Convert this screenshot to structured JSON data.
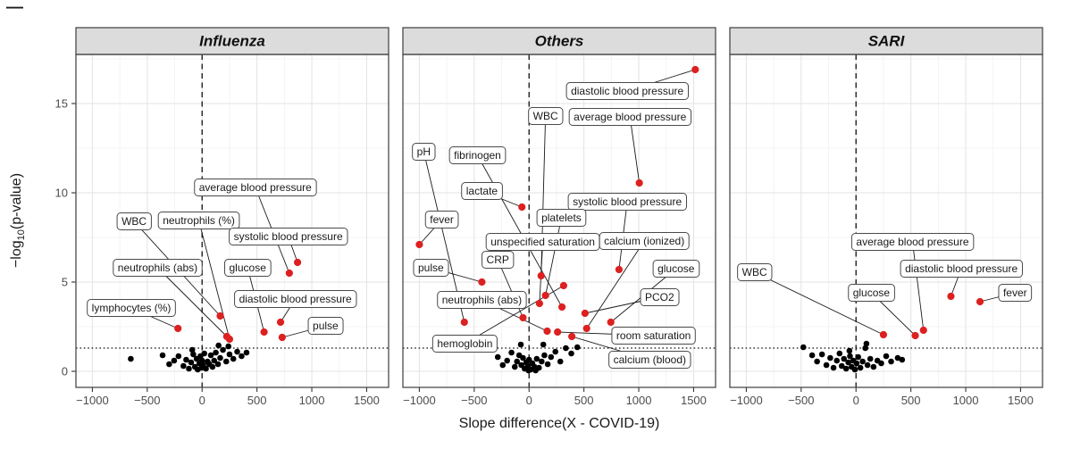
{
  "page": {
    "corner_mark": "—"
  },
  "chart_data": {
    "type": "scatter",
    "subtype": "faceted volcano plot",
    "title": "",
    "xlabel": "Slope difference(X - COVID-19)",
    "ylabel": "-log10(p-value)",
    "ylabel_parts": {
      "prefix": "−log",
      "sub": "10",
      "suffix": "(p-value)"
    },
    "xlim": [
      -1150,
      1700
    ],
    "ylim": [
      -0.9,
      17.75
    ],
    "x_ticks": [
      -1000,
      -500,
      0,
      500,
      1000,
      1500
    ],
    "y_ticks": [
      0,
      5,
      10,
      15
    ],
    "x_minor_ticks": [
      -750,
      -250,
      250,
      750,
      1250
    ],
    "y_minor_ticks": [
      2.5,
      7.5,
      12.5,
      17.5
    ],
    "grid": true,
    "legend_position": "none",
    "significance_threshold_y": 1.3,
    "reference_vline_x": 0,
    "colors": {
      "significant_point": "#dd2020",
      "background_point": "#000000",
      "strip_background": "#dcdcdc",
      "panel_border": "#4a4a4a",
      "grid_major": "#e3e3e3",
      "grid_minor": "#f1f1f1",
      "label_box_fill": "#ffffff",
      "label_box_border": "#4a4a4a",
      "leader_line": "#1a1a1a",
      "tick_text": "#4d4d4d"
    },
    "facets": [
      {
        "title": "Influenza",
        "significant_points": [
          {
            "label": "lymphocytes (%)",
            "x": -220,
            "y": 2.4,
            "label_x": -645,
            "label_y": 3.55
          },
          {
            "label": "WBC",
            "x": 165,
            "y": 3.1,
            "label_x": -620,
            "label_y": 8.4
          },
          {
            "label": "neutrophils (%)",
            "x": 250,
            "y": 1.8,
            "label_x": -30,
            "label_y": 8.45
          },
          {
            "label": "neutrophils (abs)",
            "x": 225,
            "y": 1.95,
            "label_x": -405,
            "label_y": 5.8
          },
          {
            "label": "glucose",
            "x": 565,
            "y": 2.2,
            "label_x": 415,
            "label_y": 5.8
          },
          {
            "label": "diastolic blood pressure",
            "x": 715,
            "y": 2.75,
            "label_x": 850,
            "label_y": 4.05
          },
          {
            "label": "pulse",
            "x": 730,
            "y": 1.9,
            "label_x": 1125,
            "label_y": 2.55
          },
          {
            "label": "average blood pressure",
            "x": 795,
            "y": 5.5,
            "label_x": 485,
            "label_y": 10.3
          },
          {
            "label": "systolic blood pressure",
            "x": 870,
            "y": 6.1,
            "label_x": 785,
            "label_y": 7.55
          }
        ],
        "background_points": [
          [
            -650,
            0.7
          ],
          [
            -360,
            0.9
          ],
          [
            -300,
            0.4
          ],
          [
            -255,
            0.6
          ],
          [
            -215,
            0.85
          ],
          [
            -170,
            0.3
          ],
          [
            -145,
            0.65
          ],
          [
            -120,
            0.15
          ],
          [
            -100,
            0.5
          ],
          [
            -80,
            0.95
          ],
          [
            -65,
            0.25
          ],
          [
            -50,
            0.7
          ],
          [
            -40,
            0.1
          ],
          [
            -25,
            0.45
          ],
          [
            -15,
            0.85
          ],
          [
            -5,
            0.2
          ],
          [
            0,
            0.6
          ],
          [
            10,
            0.35
          ],
          [
            20,
            1.0
          ],
          [
            35,
            0.15
          ],
          [
            50,
            0.55
          ],
          [
            65,
            0.4
          ],
          [
            80,
            0.9
          ],
          [
            95,
            0.25
          ],
          [
            110,
            0.6
          ],
          [
            125,
            1.05
          ],
          [
            145,
            0.4
          ],
          [
            165,
            0.75
          ],
          [
            190,
            1.2
          ],
          [
            220,
            0.55
          ],
          [
            250,
            0.95
          ],
          [
            285,
            0.7
          ],
          [
            320,
            1.1
          ],
          [
            360,
            0.85
          ],
          [
            405,
            1.05
          ],
          [
            150,
            1.45
          ],
          [
            240,
            1.4
          ],
          [
            -90,
            1.2
          ]
        ]
      },
      {
        "title": "Others",
        "significant_points": [
          {
            "label": "pH",
            "x": -590,
            "y": 2.75,
            "label_x": -960,
            "label_y": 12.3
          },
          {
            "label": "fibrinogen",
            "x": 300,
            "y": 3.6,
            "label_x": -470,
            "label_y": 12.1
          },
          {
            "label": "lactate",
            "x": -65,
            "y": 9.2,
            "label_x": -430,
            "label_y": 10.1
          },
          {
            "label": "fever",
            "x": -1000,
            "y": 7.1,
            "label_x": -795,
            "label_y": 8.5
          },
          {
            "label": "WBC",
            "x": 110,
            "y": 5.35,
            "label_x": 150,
            "label_y": 14.3
          },
          {
            "label": "diastolic blood pressure",
            "x": 1515,
            "y": 16.9,
            "label_x": 895,
            "label_y": 15.7
          },
          {
            "label": "average blood pressure",
            "x": 1005,
            "y": 10.55,
            "label_x": 920,
            "label_y": 14.25
          },
          {
            "label": "systolic blood pressure",
            "x": 820,
            "y": 5.7,
            "label_x": 895,
            "label_y": 9.5
          },
          {
            "label": "platelets",
            "x": 150,
            "y": 4.25,
            "label_x": 295,
            "label_y": 8.6
          },
          {
            "label": "unspecified saturation",
            "x": 95,
            "y": 3.8,
            "label_x": 125,
            "label_y": 7.25
          },
          {
            "label": "calcium (ionized)",
            "x": 525,
            "y": 2.4,
            "label_x": 1050,
            "label_y": 7.3
          },
          {
            "label": "CRP",
            "x": -55,
            "y": 3.0,
            "label_x": -285,
            "label_y": 6.25
          },
          {
            "label": "pulse",
            "x": -430,
            "y": 5.0,
            "label_x": -895,
            "label_y": 5.8
          },
          {
            "label": "glucose",
            "x": 745,
            "y": 2.75,
            "label_x": 1340,
            "label_y": 5.75
          },
          {
            "label": "neutrophils (abs)",
            "x": 165,
            "y": 2.25,
            "label_x": -430,
            "label_y": 4.0
          },
          {
            "label": "PCO2",
            "x": 510,
            "y": 3.25,
            "label_x": 1190,
            "label_y": 4.15
          },
          {
            "label": "hemoglobin",
            "x": 315,
            "y": 4.8,
            "label_x": -585,
            "label_y": 1.55
          },
          {
            "label": "room saturation",
            "x": 260,
            "y": 2.2,
            "label_x": 1135,
            "label_y": 2.0
          },
          {
            "label": "calcium (blood)",
            "x": 390,
            "y": 1.95,
            "label_x": 1100,
            "label_y": 0.65
          }
        ],
        "background_points": [
          [
            -350,
            1.35
          ],
          [
            -285,
            0.8
          ],
          [
            -240,
            0.35
          ],
          [
            -200,
            0.6
          ],
          [
            -160,
            1.05
          ],
          [
            -130,
            0.25
          ],
          [
            -110,
            0.55
          ],
          [
            -90,
            0.9
          ],
          [
            -70,
            0.35
          ],
          [
            -55,
            0.75
          ],
          [
            -40,
            0.15
          ],
          [
            -25,
            0.5
          ],
          [
            -10,
            0.3
          ],
          [
            0,
            0.65
          ],
          [
            15,
            0.1
          ],
          [
            30,
            0.45
          ],
          [
            50,
            0.25
          ],
          [
            70,
            0.7
          ],
          [
            90,
            0.2
          ],
          [
            115,
            0.55
          ],
          [
            140,
            0.9
          ],
          [
            170,
            0.4
          ],
          [
            200,
            0.8
          ],
          [
            240,
            1.1
          ],
          [
            285,
            0.55
          ],
          [
            335,
            1.3
          ],
          [
            385,
            1.0
          ],
          [
            440,
            1.35
          ],
          [
            -75,
            1.5
          ],
          [
            130,
            1.5
          ],
          [
            60,
            0.05
          ],
          [
            -5,
            0.05
          ]
        ]
      },
      {
        "title": "SARI",
        "significant_points": [
          {
            "label": "WBC",
            "x": 250,
            "y": 2.05,
            "label_x": -925,
            "label_y": 5.55
          },
          {
            "label": "glucose",
            "x": 540,
            "y": 2.0,
            "label_x": 140,
            "label_y": 4.4
          },
          {
            "label": "average blood pressure",
            "x": 615,
            "y": 2.3,
            "label_x": 515,
            "label_y": 7.25
          },
          {
            "label": "diastolic blood pressure",
            "x": 865,
            "y": 4.2,
            "label_x": 960,
            "label_y": 5.75
          },
          {
            "label": "fever",
            "x": 1130,
            "y": 3.9,
            "label_x": 1450,
            "label_y": 4.4
          }
        ],
        "background_points": [
          [
            -480,
            1.35
          ],
          [
            -400,
            0.9
          ],
          [
            -355,
            0.55
          ],
          [
            -310,
            0.95
          ],
          [
            -270,
            0.35
          ],
          [
            -235,
            0.75
          ],
          [
            -205,
            0.2
          ],
          [
            -175,
            0.6
          ],
          [
            -150,
            1.0
          ],
          [
            -130,
            0.3
          ],
          [
            -110,
            0.7
          ],
          [
            -90,
            0.15
          ],
          [
            -70,
            0.5
          ],
          [
            -55,
            0.85
          ],
          [
            -40,
            0.25
          ],
          [
            -25,
            0.6
          ],
          [
            -10,
            0.1
          ],
          [
            5,
            0.45
          ],
          [
            20,
            0.8
          ],
          [
            40,
            0.2
          ],
          [
            60,
            0.55
          ],
          [
            85,
            1.3
          ],
          [
            105,
            0.35
          ],
          [
            130,
            0.7
          ],
          [
            160,
            0.25
          ],
          [
            195,
            0.6
          ],
          [
            230,
            0.45
          ],
          [
            275,
            0.85
          ],
          [
            320,
            0.55
          ],
          [
            380,
            0.75
          ],
          [
            95,
            1.55
          ],
          [
            -60,
            1.15
          ],
          [
            420,
            0.65
          ]
        ]
      }
    ]
  }
}
